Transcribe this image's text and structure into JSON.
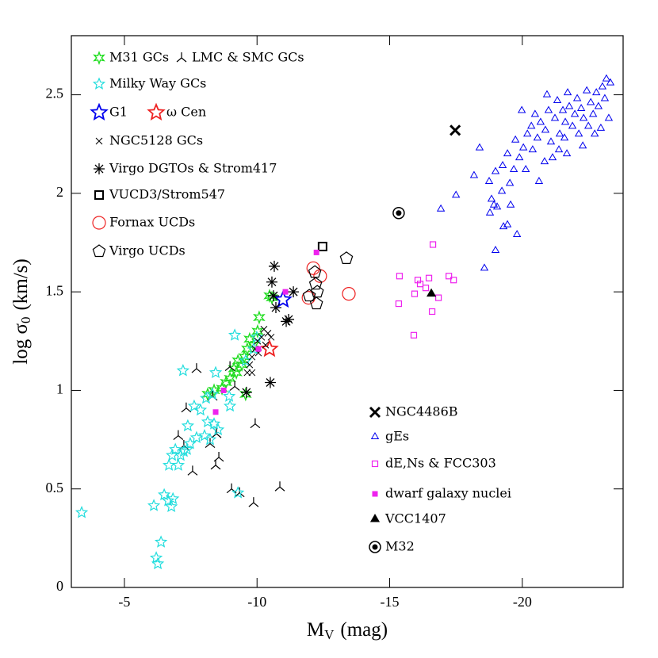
{
  "chart_data": {
    "type": "scatter",
    "xlabel": {
      "text": "M",
      "sub": "V",
      "unit": "(mag)"
    },
    "ylabel": {
      "text": "log σ",
      "sub": "0",
      "unit": "(km/s)"
    },
    "xlim": [
      -3,
      -23.8
    ],
    "ylim": [
      0,
      2.8
    ],
    "xticks": [
      -5,
      -10,
      -15,
      -20
    ],
    "yticks": [
      0,
      0.5,
      1,
      1.5,
      2,
      2.5
    ],
    "series": [
      {
        "name": "M31 GCs",
        "color": "#22dd22",
        "marker": "star6",
        "x": [
          -8.14,
          -8.38,
          -8.68,
          -8.83,
          -8.98,
          -9.13,
          -9.22,
          -9.28,
          -9.43,
          -9.52,
          -9.63,
          -9.72,
          -9.87,
          -10.02,
          -10.08,
          -10.47,
          -10.56,
          -9.57
        ],
        "values": [
          0.98,
          1.0,
          1.01,
          1.04,
          1.06,
          1.11,
          1.09,
          1.15,
          1.13,
          1.17,
          1.21,
          1.26,
          1.23,
          1.3,
          1.37,
          1.48,
          1.47,
          0.98
        ]
      },
      {
        "name": "LMC & SMC GCs",
        "color": "#000000",
        "marker": "tri3",
        "x": [
          -7.72,
          -7.33,
          -7.03,
          -7.24,
          -7.57,
          -8.23,
          -8.32,
          -8.44,
          -8.56,
          -8.47,
          -8.98,
          -9.04,
          -9.34,
          -9.93,
          -9.87,
          -10.86,
          -9.16
        ],
        "values": [
          1.11,
          0.91,
          0.77,
          0.72,
          0.59,
          0.73,
          0.97,
          0.62,
          0.66,
          0.78,
          1.12,
          0.5,
          0.48,
          0.83,
          0.43,
          0.51,
          1.02
        ]
      },
      {
        "name": "Milky Way GCs",
        "color": "#22dddd",
        "marker": "star",
        "x": [
          -3.39,
          -6.11,
          -6.26,
          -6.2,
          -6.38,
          -6.5,
          -6.65,
          -6.77,
          -6.83,
          -6.68,
          -6.8,
          -6.92,
          -7.03,
          -7.12,
          -7.24,
          -7.36,
          -7.48,
          -7.72,
          -8.02,
          -8.23,
          -8.14,
          -8.38,
          -8.53,
          -7.39,
          -7.63,
          -7.87,
          -8.08,
          -8.32,
          -8.98,
          -8.95,
          -7.21,
          -8.44,
          -9.16,
          -9.28,
          -9.57,
          -9.87,
          -9.99
        ],
        "values": [
          0.38,
          0.415,
          0.12,
          0.15,
          0.23,
          0.47,
          0.44,
          0.41,
          0.45,
          0.62,
          0.67,
          0.7,
          0.62,
          0.67,
          0.69,
          0.7,
          0.73,
          0.76,
          0.77,
          0.75,
          0.84,
          0.83,
          0.8,
          0.82,
          0.92,
          0.9,
          0.96,
          0.98,
          0.92,
          0.97,
          1.1,
          1.09,
          1.28,
          0.48,
          1.15,
          1.21,
          1.27
        ]
      },
      {
        "name": "G1",
        "color": "#0000ee",
        "marker": "bigstar",
        "x": [
          -10.98
        ],
        "values": [
          1.46
        ]
      },
      {
        "name": "ω Cen",
        "color": "#ee2222",
        "marker": "bigstar",
        "x": [
          -10.47
        ],
        "values": [
          1.21
        ]
      },
      {
        "name": "NGC5128 GCs",
        "color": "#000000",
        "marker": "xsmall",
        "x": [
          -9.63,
          -9.72,
          -9.81,
          -9.93,
          -10.02,
          -10.17,
          -10.26,
          -10.41,
          -10.53,
          -9.81,
          -10.05,
          -10.32
        ],
        "values": [
          1.09,
          1.13,
          1.17,
          1.21,
          1.25,
          1.27,
          1.31,
          1.29,
          1.27,
          1.09,
          1.19,
          1.23
        ]
      },
      {
        "name": "Virgo DGTOs & Strom417",
        "color": "#000000",
        "marker": "asterisk",
        "x": [
          -10.65,
          -10.56,
          -10.62,
          -10.71,
          -11.1,
          -11.19,
          -11.37,
          -10.5,
          -9.6
        ],
        "values": [
          1.63,
          1.55,
          1.48,
          1.42,
          1.35,
          1.36,
          1.5,
          1.04,
          0.99
        ]
      },
      {
        "name": "VUCD3/Strom547",
        "color": "#000000",
        "marker": "square",
        "x": [
          -12.47
        ],
        "values": [
          1.73
        ]
      },
      {
        "name": "Fornax UCDs",
        "color": "#ee2222",
        "marker": "circle",
        "x": [
          -12.12,
          -12.38,
          -11.94,
          -13.46
        ],
        "values": [
          1.62,
          1.58,
          1.47,
          1.49
        ]
      },
      {
        "name": "Virgo UCDs",
        "color": "#000000",
        "marker": "pentagon",
        "x": [
          -12.18,
          -12.21,
          -12.27,
          -12.24,
          -13.37,
          -11.97
        ],
        "values": [
          1.6,
          1.54,
          1.5,
          1.44,
          1.67,
          1.48
        ]
      },
      {
        "name": "NGC4486B",
        "color": "#000000",
        "marker": "xbold",
        "x": [
          -17.47
        ],
        "values": [
          2.32
        ]
      },
      {
        "name": "gEs",
        "color": "#0000ee",
        "marker": "triangle",
        "x": [
          -16.93,
          -17.5,
          -18.39,
          -18.18,
          -18.57,
          -18.99,
          -19.8,
          -18.78,
          -19.05,
          -19.23,
          -19.53,
          -19.56,
          -18.84,
          -18.93,
          -18.99,
          -19.26,
          -19.44,
          -19.74,
          -19.89,
          -20.04,
          -20.19,
          -20.34,
          -19.68,
          -20.13,
          -20.39,
          -20.57,
          -20.69,
          -20.87,
          -20.99,
          -21.08,
          -21.23,
          -21.32,
          -21.41,
          -21.53,
          -21.62,
          -21.71,
          -21.77,
          -21.89,
          -21.98,
          -22.07,
          -22.13,
          -22.22,
          -22.31,
          -22.43,
          -22.49,
          -22.58,
          -22.67,
          -22.79,
          -22.87,
          -23.02,
          -23.11,
          -23.17,
          -23.26,
          -23.32,
          -20.84,
          -21.14,
          -21.38,
          -21.59,
          -20.48,
          -20.93,
          -19.98,
          -20.63,
          -21.68,
          -22.28,
          -22.73,
          -22.96,
          -18.75,
          -19.29,
          -19.44
        ],
        "values": [
          1.92,
          1.99,
          2.23,
          2.09,
          1.62,
          1.71,
          1.79,
          1.9,
          1.93,
          2.01,
          2.05,
          1.94,
          1.97,
          1.94,
          2.11,
          2.14,
          2.2,
          2.27,
          2.18,
          2.23,
          2.3,
          2.34,
          2.12,
          2.12,
          2.22,
          2.28,
          2.36,
          2.32,
          2.42,
          2.26,
          2.38,
          2.47,
          2.3,
          2.42,
          2.36,
          2.51,
          2.44,
          2.34,
          2.4,
          2.48,
          2.3,
          2.43,
          2.38,
          2.52,
          2.34,
          2.46,
          2.4,
          2.51,
          2.44,
          2.54,
          2.48,
          2.58,
          2.38,
          2.56,
          2.16,
          2.18,
          2.22,
          2.28,
          2.4,
          2.5,
          2.42,
          2.06,
          2.2,
          2.24,
          2.3,
          2.33,
          2.06,
          1.83,
          1.84
        ]
      },
      {
        "name": "dE,Ns & FCC303",
        "color": "#ee22ee",
        "marker": "square",
        "x": [
          -16.63,
          -15.37,
          -15.34,
          -16.06,
          -16.15,
          -16.48,
          -15.94,
          -16.36,
          -16.6,
          -16.84,
          -15.91,
          -17.23,
          -17.41
        ],
        "values": [
          1.74,
          1.58,
          1.44,
          1.56,
          1.54,
          1.57,
          1.49,
          1.52,
          1.4,
          1.47,
          1.28,
          1.58,
          1.56
        ]
      },
      {
        "name": "dwarf galaxy nuclei",
        "color": "#ee22ee",
        "marker": "fsquare",
        "x": [
          -8.44,
          -8.74,
          -10.05,
          -11.07,
          -12.24
        ],
        "values": [
          0.89,
          1.0,
          1.21,
          1.5,
          1.7
        ]
      },
      {
        "name": "VCC1407",
        "color": "#000000",
        "marker": "ftriangle",
        "x": [
          -16.57
        ],
        "values": [
          1.49
        ]
      },
      {
        "name": "M32",
        "color": "#000000",
        "marker": "circledot",
        "x": [
          -15.34
        ],
        "values": [
          1.9
        ]
      }
    ]
  }
}
